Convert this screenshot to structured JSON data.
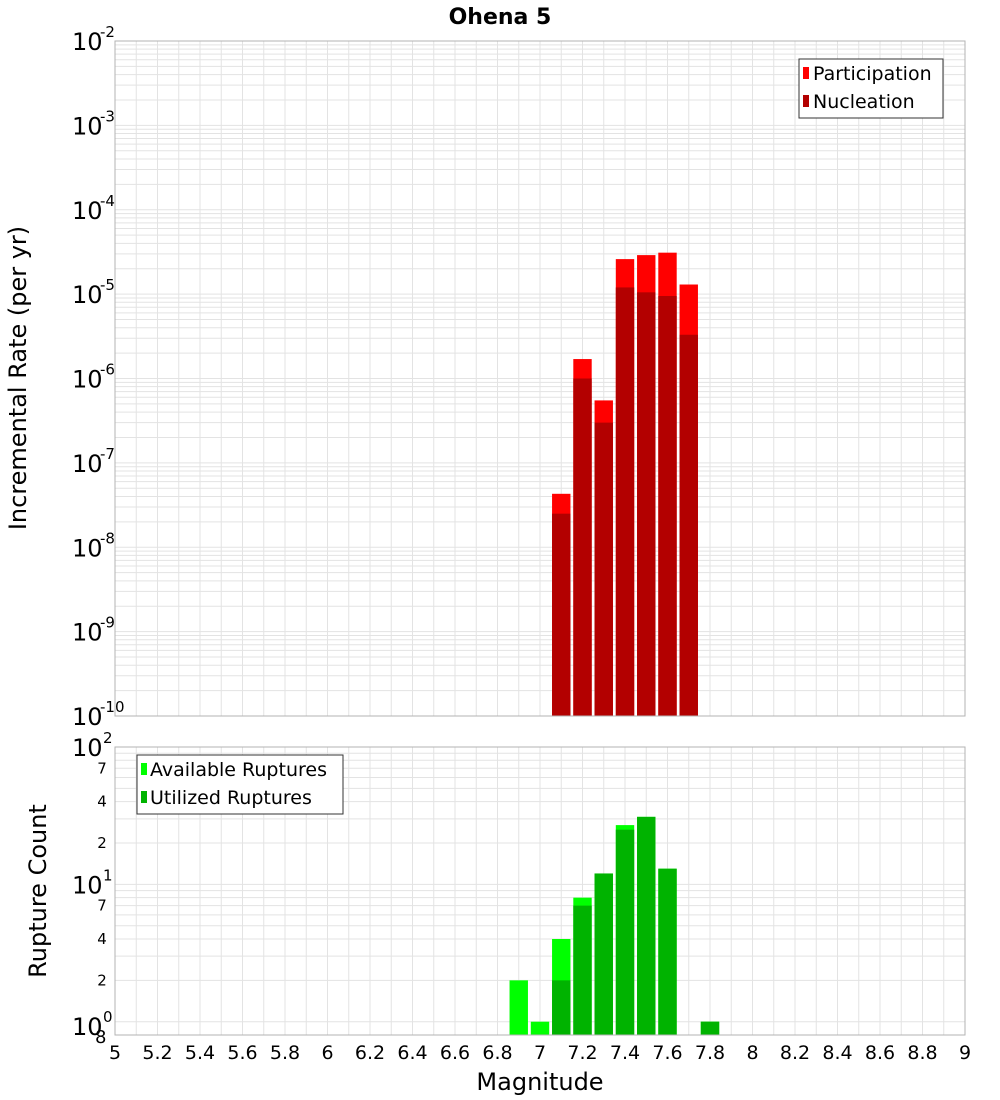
{
  "title": "Ohena 5",
  "colors": {
    "participation": "#ff0000",
    "nucleation": "#b30000",
    "available": "#00ff00",
    "utilized": "#00b300",
    "grid": "#e3e3e3",
    "border": "#b3b3b3"
  },
  "chart_data": [
    {
      "type": "bar",
      "title": "Ohena 5",
      "xlabel": "Magnitude",
      "ylabel": "Incremental Rate (per yr)",
      "yscale": "log",
      "xlim": [
        5,
        9
      ],
      "ylim": [
        1e-10,
        0.01
      ],
      "grid": true,
      "legend_position": "top-right",
      "x": [
        7.1,
        7.2,
        7.3,
        7.4,
        7.5,
        7.6,
        7.7
      ],
      "series": [
        {
          "name": "Participation",
          "values": [
            4.3e-08,
            1.7e-06,
            5.5e-07,
            2.6e-05,
            2.9e-05,
            3.1e-05,
            1.3e-05
          ]
        },
        {
          "name": "Nucleation",
          "values": [
            2.5e-08,
            1e-06,
            3e-07,
            1.2e-05,
            1.05e-05,
            9.5e-06,
            3.3e-06
          ]
        }
      ]
    },
    {
      "type": "bar",
      "xlabel": "Magnitude",
      "ylabel": "Rupture Count",
      "yscale": "log",
      "xlim": [
        5,
        9
      ],
      "ylim": [
        0.8,
        100
      ],
      "grid": true,
      "legend_position": "top-left",
      "x": [
        6.9,
        7.0,
        7.1,
        7.2,
        7.3,
        7.4,
        7.5,
        7.6,
        7.7,
        7.8
      ],
      "series": [
        {
          "name": "Available Ruptures",
          "values": [
            2,
            1,
            4,
            8,
            12,
            27,
            31,
            13,
            0,
            1
          ]
        },
        {
          "name": "Utilized Ruptures",
          "values": [
            0,
            0,
            2,
            7,
            12,
            25,
            31,
            13,
            0,
            1
          ]
        }
      ]
    }
  ],
  "x_ticks": [
    "5",
    "5.2",
    "5.4",
    "5.6",
    "5.8",
    "6",
    "6.2",
    "6.4",
    "6.6",
    "6.8",
    "7",
    "7.2",
    "7.4",
    "7.6",
    "7.8",
    "8",
    "8.2",
    "8.4",
    "8.6",
    "8.8",
    "9"
  ],
  "top_y_ticks": [
    {
      "base": "10",
      "exp": "-10"
    },
    {
      "base": "10",
      "exp": "-9"
    },
    {
      "base": "10",
      "exp": "-8"
    },
    {
      "base": "10",
      "exp": "-7"
    },
    {
      "base": "10",
      "exp": "-6"
    },
    {
      "base": "10",
      "exp": "-5"
    },
    {
      "base": "10",
      "exp": "-4"
    },
    {
      "base": "10",
      "exp": "-3"
    },
    {
      "base": "10",
      "exp": "-2"
    }
  ],
  "bottom_y_ticks": [
    {
      "base": "10",
      "exp": "0",
      "sub": "8"
    },
    {
      "base": "10",
      "exp": "1"
    },
    {
      "base": "10",
      "exp": "2"
    }
  ],
  "bottom_minor_labels": [
    "2",
    "4",
    "7",
    "2",
    "4",
    "7"
  ]
}
